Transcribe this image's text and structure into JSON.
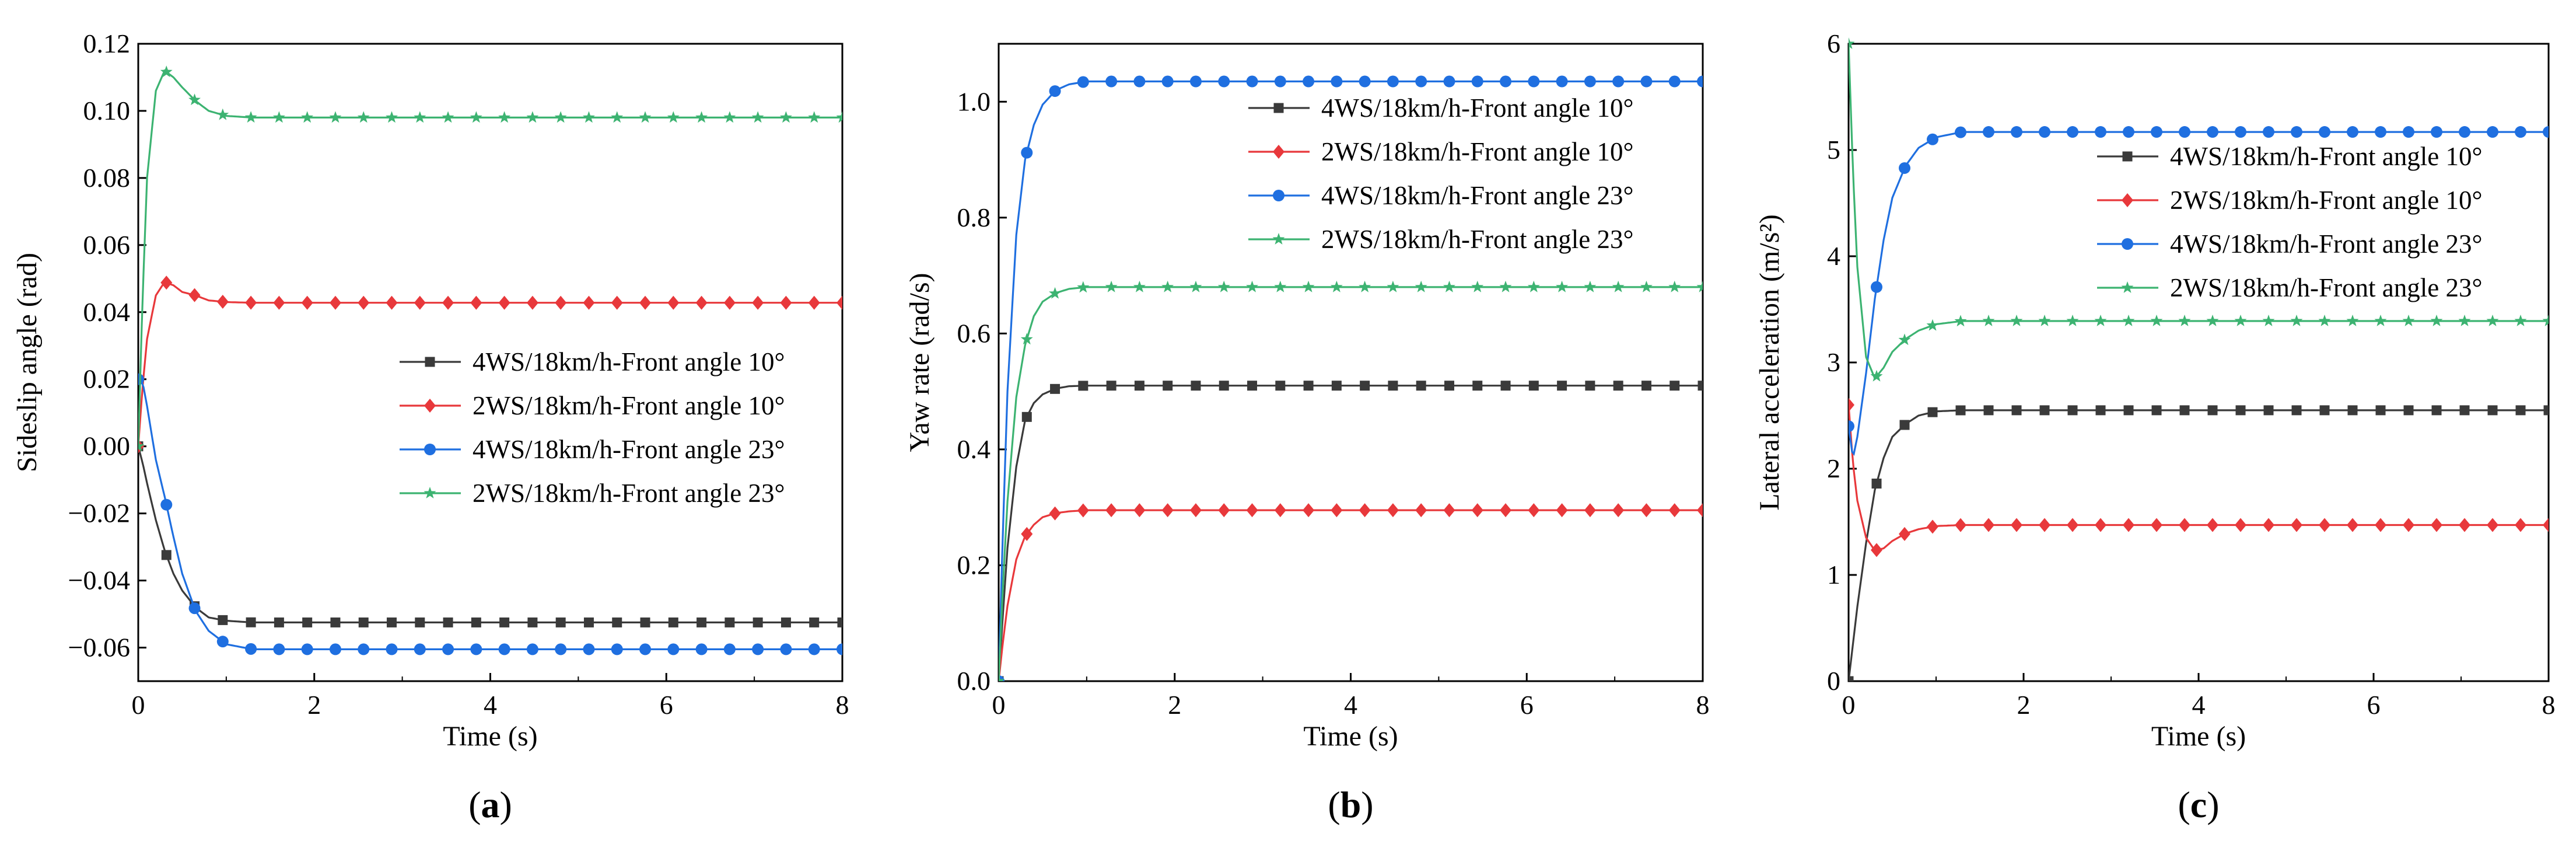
{
  "chart_data": [
    {
      "id": "a",
      "type": "line",
      "caption": "a",
      "xlabel": "Time (s)",
      "ylabel": "Sideslip angle (rad)",
      "xlim": [
        0,
        8
      ],
      "ylim": [
        -0.07,
        0.12
      ],
      "xticks": [
        0,
        2,
        4,
        6,
        8
      ],
      "xtick_labels": [
        "0",
        "2",
        "4",
        "6",
        "8"
      ],
      "yticks": [
        -0.06,
        -0.04,
        -0.02,
        0.0,
        0.02,
        0.04,
        0.06,
        0.08,
        0.1,
        0.12
      ],
      "ytick_labels": [
        "−0.06",
        "−0.04",
        "−0.02",
        "0.00",
        "0.02",
        "0.04",
        "0.06",
        "0.08",
        "0.10",
        "0.12"
      ],
      "legend_position": "center-right",
      "series": [
        {
          "name": "4WS/18km/h-Front angle 10°",
          "color": "#3a3a3a",
          "marker": "square",
          "x": [
            0,
            0.05,
            0.1,
            0.2,
            0.3,
            0.4,
            0.5,
            0.65,
            0.8,
            1.0,
            1.3,
            1.6,
            2,
            8
          ],
          "y": [
            0.0,
            -0.005,
            -0.011,
            -0.022,
            -0.031,
            -0.038,
            -0.043,
            -0.048,
            -0.051,
            -0.052,
            -0.0525,
            -0.0525,
            -0.0525,
            -0.0525
          ]
        },
        {
          "name": "2WS/18km/h-Front angle 10°",
          "color": "#e8383b",
          "marker": "diamond",
          "x": [
            0,
            0.05,
            0.1,
            0.2,
            0.3,
            0.4,
            0.5,
            0.65,
            0.8,
            1.0,
            1.3,
            1.6,
            2,
            8
          ],
          "y": [
            0.0,
            0.018,
            0.032,
            0.045,
            0.049,
            0.048,
            0.046,
            0.045,
            0.0435,
            0.043,
            0.0428,
            0.0428,
            0.0428,
            0.0428
          ]
        },
        {
          "name": "4WS/18km/h-Front angle 23°",
          "color": "#1f6fe0",
          "marker": "circle",
          "x": [
            0,
            0.05,
            0.1,
            0.2,
            0.3,
            0.4,
            0.5,
            0.65,
            0.8,
            1.0,
            1.3,
            1.6,
            2,
            8
          ],
          "y": [
            0.02,
            0.019,
            0.012,
            -0.004,
            -0.015,
            -0.027,
            -0.038,
            -0.049,
            -0.055,
            -0.059,
            -0.0605,
            -0.0605,
            -0.0605,
            -0.0605
          ]
        },
        {
          "name": "2WS/18km/h-Front angle 23°",
          "color": "#3cb371",
          "marker": "star",
          "x": [
            0,
            0.05,
            0.1,
            0.2,
            0.3,
            0.4,
            0.5,
            0.65,
            0.8,
            1.0,
            1.3,
            1.6,
            2,
            8
          ],
          "y": [
            0.0,
            0.045,
            0.08,
            0.106,
            0.112,
            0.11,
            0.107,
            0.103,
            0.1,
            0.0985,
            0.098,
            0.098,
            0.098,
            0.098
          ]
        }
      ]
    },
    {
      "id": "b",
      "type": "line",
      "caption": "b",
      "xlabel": "Time (s)",
      "ylabel": "Yaw rate (rad/s)",
      "xlim": [
        0,
        8
      ],
      "ylim": [
        0,
        1.1
      ],
      "xticks": [
        0,
        2,
        4,
        6,
        8
      ],
      "xtick_labels": [
        "0",
        "2",
        "4",
        "6",
        "8"
      ],
      "yticks": [
        0.0,
        0.2,
        0.4,
        0.6,
        0.8,
        1.0
      ],
      "ytick_labels": [
        "0.0",
        "0.2",
        "0.4",
        "0.6",
        "0.8",
        "1.0"
      ],
      "legend_position": "upper-right",
      "series": [
        {
          "name": "4WS/18km/h-Front angle 10°",
          "color": "#3a3a3a",
          "marker": "square",
          "x": [
            0,
            0.05,
            0.1,
            0.2,
            0.3,
            0.4,
            0.5,
            0.65,
            0.8,
            1.0,
            1.3,
            2,
            8
          ],
          "y": [
            0.0,
            0.12,
            0.23,
            0.37,
            0.45,
            0.48,
            0.495,
            0.505,
            0.509,
            0.51,
            0.51,
            0.51,
            0.51
          ]
        },
        {
          "name": "2WS/18km/h-Front angle 10°",
          "color": "#e8383b",
          "marker": "diamond",
          "x": [
            0,
            0.05,
            0.1,
            0.2,
            0.3,
            0.4,
            0.5,
            0.65,
            0.8,
            1.0,
            1.3,
            2,
            8
          ],
          "y": [
            0.0,
            0.07,
            0.13,
            0.21,
            0.25,
            0.27,
            0.283,
            0.29,
            0.293,
            0.295,
            0.295,
            0.295,
            0.295
          ]
        },
        {
          "name": "4WS/18km/h-Front angle 23°",
          "color": "#1f6fe0",
          "marker": "circle",
          "x": [
            0,
            0.05,
            0.1,
            0.2,
            0.3,
            0.4,
            0.5,
            0.65,
            0.8,
            1.0,
            1.3,
            2,
            8
          ],
          "y": [
            0.0,
            0.27,
            0.5,
            0.77,
            0.9,
            0.96,
            0.995,
            1.02,
            1.03,
            1.035,
            1.035,
            1.035,
            1.035
          ]
        },
        {
          "name": "2WS/18km/h-Front angle 23°",
          "color": "#3cb371",
          "marker": "star",
          "x": [
            0,
            0.05,
            0.1,
            0.2,
            0.3,
            0.4,
            0.5,
            0.65,
            0.8,
            1.0,
            1.3,
            2,
            8
          ],
          "y": [
            0.0,
            0.17,
            0.31,
            0.49,
            0.58,
            0.63,
            0.655,
            0.67,
            0.677,
            0.68,
            0.68,
            0.68,
            0.68
          ]
        }
      ]
    },
    {
      "id": "c",
      "type": "line",
      "caption": "c",
      "xlabel": "Time (s)",
      "ylabel": "Lateral acceleration (m/s²)",
      "xlim": [
        0,
        8
      ],
      "ylim": [
        0,
        6
      ],
      "xticks": [
        0,
        2,
        4,
        6,
        8
      ],
      "xtick_labels": [
        "0",
        "2",
        "4",
        "6",
        "8"
      ],
      "yticks": [
        0,
        1,
        2,
        3,
        4,
        5,
        6
      ],
      "ytick_labels": [
        "0",
        "1",
        "2",
        "3",
        "4",
        "5",
        "6"
      ],
      "legend_position": "center-right",
      "series": [
        {
          "name": "4WS/18km/h-Front angle 10°",
          "color": "#3a3a3a",
          "marker": "square",
          "x": [
            0,
            0.05,
            0.1,
            0.2,
            0.3,
            0.4,
            0.5,
            0.65,
            0.8,
            1.0,
            1.3,
            2,
            8
          ],
          "y": [
            0.0,
            0.35,
            0.7,
            1.3,
            1.8,
            2.1,
            2.3,
            2.42,
            2.5,
            2.54,
            2.55,
            2.55,
            2.55
          ]
        },
        {
          "name": "2WS/18km/h-Front angle 10°",
          "color": "#e8383b",
          "marker": "diamond",
          "x": [
            0,
            0.05,
            0.1,
            0.2,
            0.3,
            0.4,
            0.5,
            0.65,
            0.8,
            1.0,
            1.3,
            2,
            8
          ],
          "y": [
            2.6,
            2.05,
            1.7,
            1.35,
            1.23,
            1.25,
            1.32,
            1.39,
            1.43,
            1.46,
            1.47,
            1.47,
            1.47
          ]
        },
        {
          "name": "4WS/18km/h-Front angle 23°",
          "color": "#1f6fe0",
          "marker": "circle",
          "x": [
            0,
            0.05,
            0.1,
            0.2,
            0.3,
            0.4,
            0.5,
            0.65,
            0.8,
            1.0,
            1.3,
            2,
            8
          ],
          "y": [
            2.4,
            2.1,
            2.3,
            2.9,
            3.6,
            4.15,
            4.55,
            4.85,
            5.02,
            5.12,
            5.17,
            5.17,
            5.17
          ]
        },
        {
          "name": "2WS/18km/h-Front angle 23°",
          "color": "#3cb371",
          "marker": "star",
          "x": [
            0,
            0.05,
            0.1,
            0.2,
            0.3,
            0.4,
            0.5,
            0.65,
            0.8,
            1.0,
            1.3,
            2,
            8
          ],
          "y": [
            6.0,
            4.8,
            3.9,
            3.05,
            2.85,
            2.95,
            3.1,
            3.22,
            3.3,
            3.36,
            3.39,
            3.39,
            3.39
          ]
        }
      ]
    }
  ]
}
